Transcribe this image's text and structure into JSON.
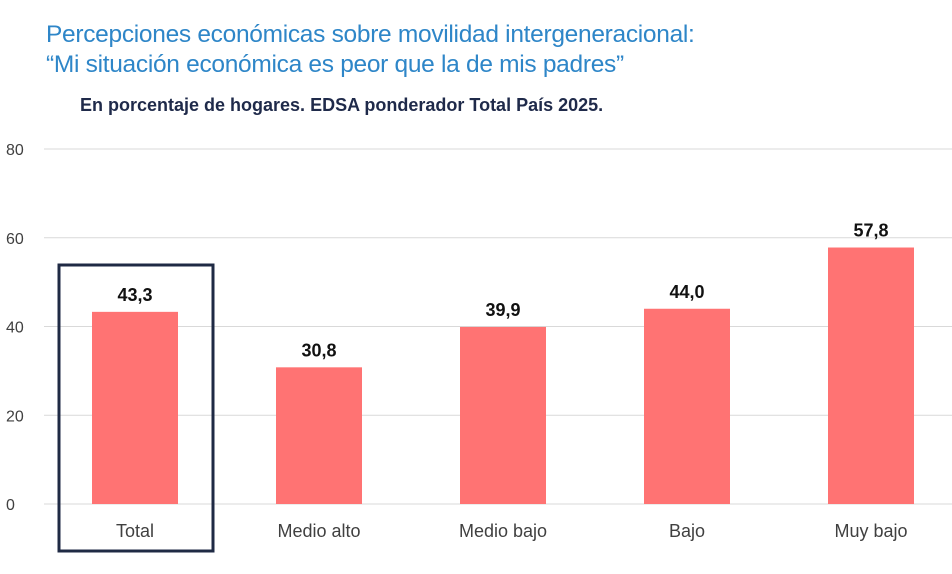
{
  "title_lines": [
    "Percepciones económicas sobre movilidad intergeneracional:",
    "“Mi situación económica es peor que la de mis padres”"
  ],
  "subtitle": "En porcentaje de hogares. EDSA ponderador Total País 2025.",
  "chart_data": {
    "type": "bar",
    "categories": [
      "Total",
      "Medio alto",
      "Medio bajo",
      "Bajo",
      "Muy bajo"
    ],
    "values": [
      43.3,
      30.8,
      39.9,
      44.0,
      57.8
    ],
    "value_labels": [
      "43,3",
      "30,8",
      "39,9",
      "44,0",
      "57,8"
    ],
    "ylim": [
      0,
      80
    ],
    "yticks": [
      0,
      20,
      40,
      60,
      80
    ],
    "grid": true,
    "highlighted_category": "Total",
    "bar_color": "#ff7373",
    "grid_color": "#d9d9d9",
    "highlight_box_color": "#1f2a44"
  }
}
